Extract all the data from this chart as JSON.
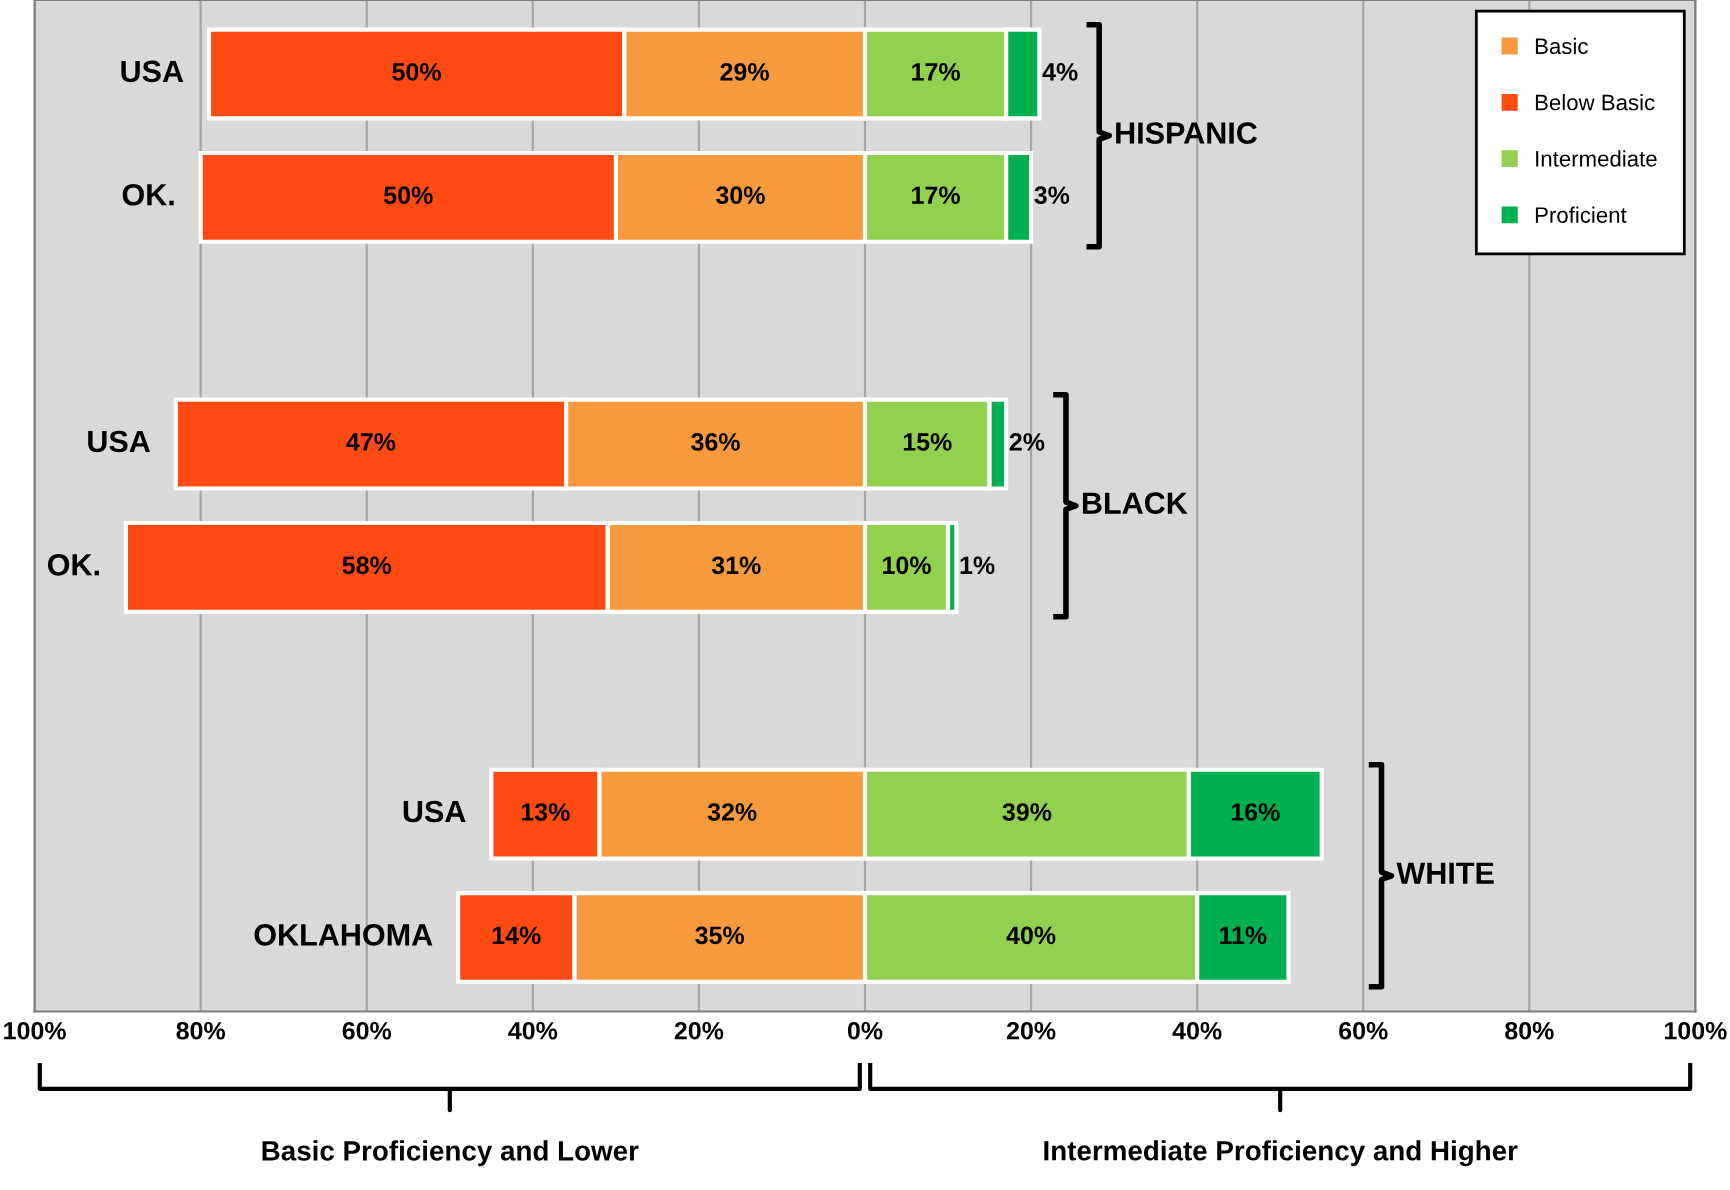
{
  "chart_data": {
    "type": "bar",
    "orientation": "horizontal",
    "categories": [
      "USA",
      "OK.",
      null,
      "USA",
      "OK.",
      null,
      "USA",
      "OKLAHOMA"
    ],
    "series": [
      {
        "name": "Basic",
        "color": "#f79a3e",
        "values": [
          29,
          30,
          null,
          36,
          31,
          null,
          32,
          35
        ],
        "base": [
          -29,
          -30,
          null,
          -36,
          -31,
          null,
          -32,
          -35
        ],
        "value_labels": [
          "29%",
          "30%",
          null,
          "36%",
          "31%",
          null,
          "32%",
          "35%"
        ]
      },
      {
        "name": "Below Basic",
        "color": "#ff4a12",
        "values": [
          50,
          50,
          null,
          47,
          58,
          null,
          13,
          14
        ],
        "base": [
          -79,
          -80,
          null,
          -83,
          -89,
          null,
          -45,
          -49
        ],
        "value_labels": [
          "50%",
          "50%",
          null,
          "47%",
          "58%",
          null,
          "13%",
          "14%"
        ]
      },
      {
        "name": "Intermediate",
        "color": "#92d050",
        "values": [
          17,
          17,
          null,
          15,
          10,
          null,
          39,
          40
        ],
        "base": [
          0,
          0,
          null,
          0,
          0,
          null,
          0,
          0
        ],
        "value_labels": [
          "17%",
          "17%",
          null,
          "15%",
          "10%",
          null,
          "39%",
          "40%"
        ]
      },
      {
        "name": "Proficient",
        "color": "#00b050",
        "values": [
          4,
          3,
          null,
          2,
          1,
          null,
          16,
          11
        ],
        "base": [
          17,
          17,
          null,
          15,
          10,
          null,
          39,
          40
        ],
        "value_labels": [
          "4%",
          "3%",
          null,
          "2%",
          "1%",
          null,
          "16%",
          "11%"
        ]
      }
    ],
    "xlim": [
      -100,
      100
    ],
    "xticks": [
      {
        "value": -100,
        "label": "100%"
      },
      {
        "value": -80,
        "label": "80%"
      },
      {
        "value": -60,
        "label": "60%"
      },
      {
        "value": -40,
        "label": "40%"
      },
      {
        "value": -20,
        "label": "20%"
      },
      {
        "value": 0,
        "label": "0%"
      },
      {
        "value": 20,
        "label": "20%"
      },
      {
        "value": 40,
        "label": "40%"
      },
      {
        "value": 60,
        "label": "60%"
      },
      {
        "value": 80,
        "label": "80%"
      },
      {
        "value": 100,
        "label": "100%"
      }
    ],
    "grid": "x",
    "legend": "top right",
    "annotations": [
      "HISPANIC",
      "BLACK",
      "WHITE",
      "Basic Proficiency and Lower",
      "Intermediate Proficiency and Higher"
    ]
  }
}
